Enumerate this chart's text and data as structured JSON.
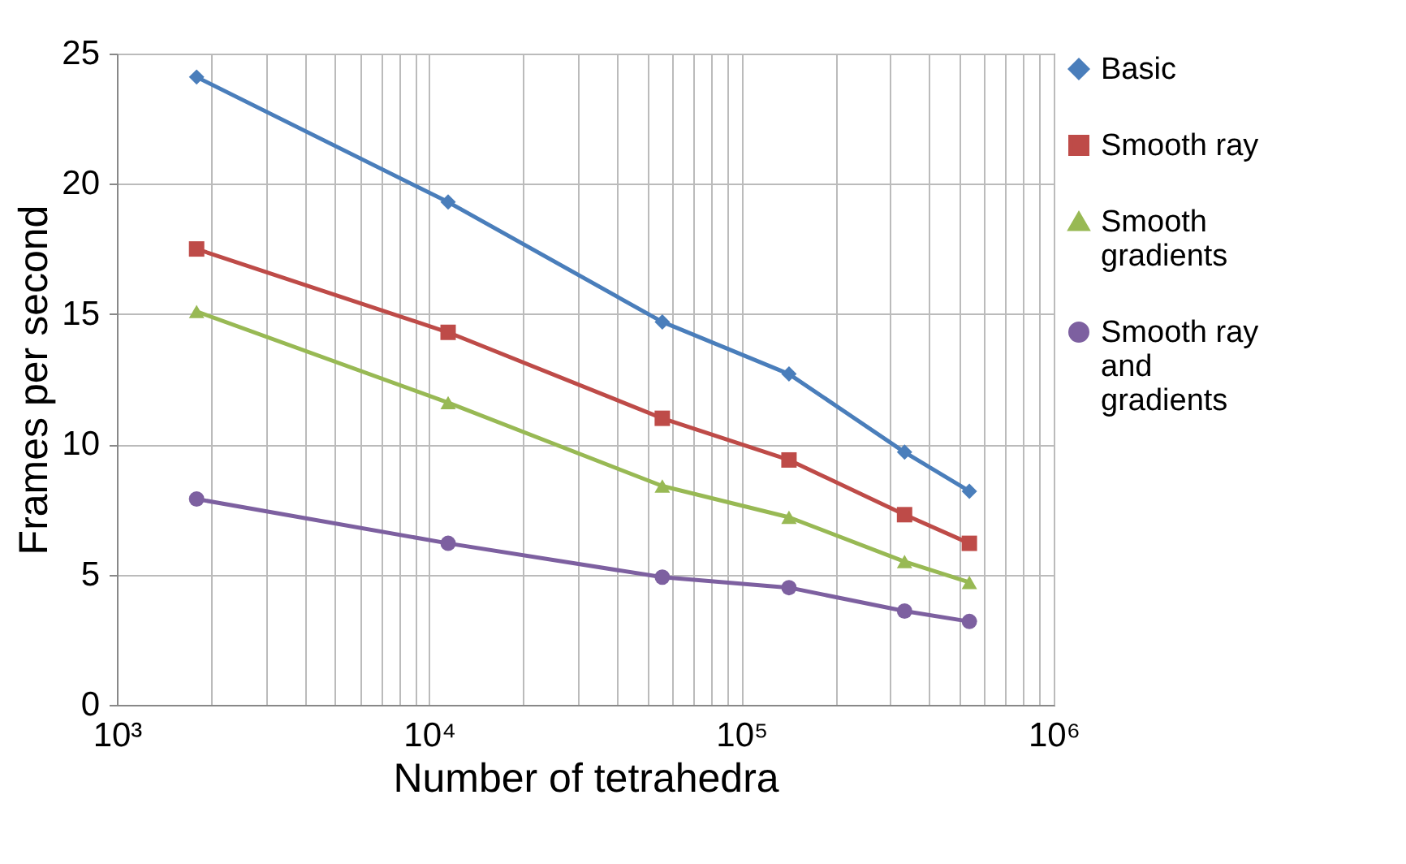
{
  "chart_data": {
    "type": "line",
    "xlabel": "Number of tetrahedra",
    "ylabel": "Frames per second",
    "x": [
      1800,
      11500,
      55800,
      142000,
      333000,
      537000
    ],
    "series": [
      {
        "name": "Basic",
        "color": "#4a7ebb",
        "marker": "diamond",
        "values": [
          24.1,
          19.3,
          14.7,
          12.7,
          9.7,
          8.2
        ]
      },
      {
        "name": "Smooth ray",
        "color": "#be4b48",
        "marker": "square",
        "values": [
          17.5,
          14.3,
          11.0,
          9.4,
          7.3,
          6.2
        ]
      },
      {
        "name": "Smooth gradients",
        "color": "#98b954",
        "marker": "triangle",
        "values": [
          15.1,
          11.6,
          8.4,
          7.2,
          5.5,
          4.7
        ]
      },
      {
        "name": "Smooth ray and gradients",
        "color": "#7d60a0",
        "marker": "circle",
        "values": [
          7.9,
          6.2,
          4.9,
          4.5,
          3.6,
          3.2
        ]
      }
    ],
    "log": "x",
    "xlim": [
      1000,
      1000000
    ],
    "xticks": [
      {
        "value": 1000,
        "label": "10³"
      },
      {
        "value": 10000,
        "label": "10⁴"
      },
      {
        "value": 100000,
        "label": "10⁵"
      },
      {
        "value": 1000000,
        "label": "10⁶"
      }
    ],
    "ylim": [
      0,
      25
    ],
    "yticks": [
      0,
      5,
      10,
      15,
      20,
      25
    ],
    "grid": true,
    "legend": "right",
    "line_style": "solid"
  }
}
